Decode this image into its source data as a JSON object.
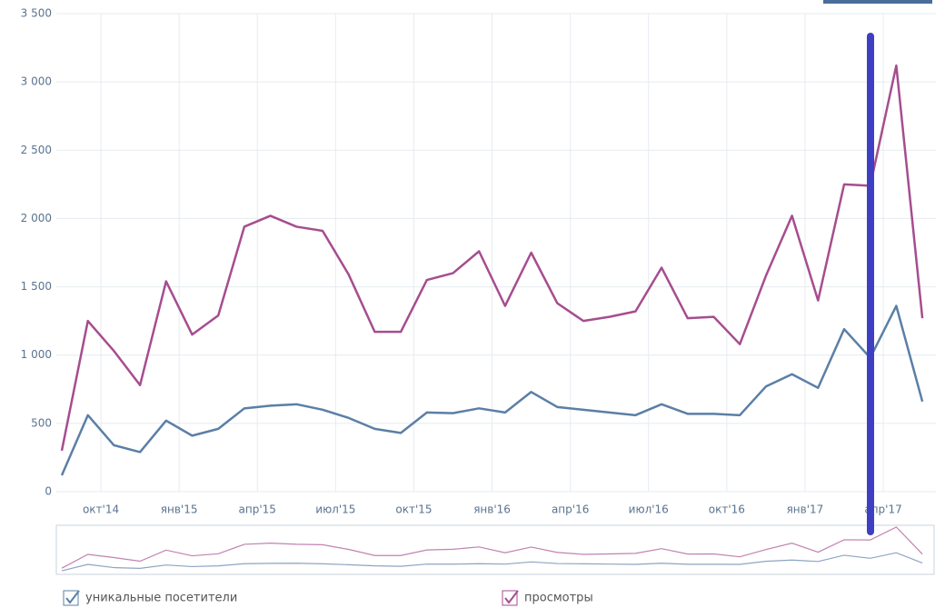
{
  "chart_data": {
    "type": "line",
    "categories": [
      null,
      "окт'14",
      null,
      null,
      "янв'15",
      null,
      null,
      "апр'15",
      null,
      null,
      "июл'15",
      null,
      null,
      "окт'15",
      null,
      null,
      "янв'16",
      null,
      null,
      "апр'16",
      null,
      null,
      "июл'16",
      null,
      null,
      "окт'16",
      null,
      null,
      "янв'17",
      null,
      null,
      "апр'17",
      null,
      null
    ],
    "series": [
      {
        "name": "уникальные посетители",
        "color": "#5b7fa6",
        "values": [
          120,
          560,
          340,
          290,
          520,
          410,
          460,
          610,
          630,
          640,
          600,
          540,
          460,
          430,
          580,
          575,
          610,
          580,
          730,
          620,
          600,
          580,
          560,
          640,
          570,
          570,
          560,
          770,
          860,
          760,
          1190,
          980,
          1360,
          660
        ]
      },
      {
        "name": "просмотры",
        "color": "#a64d8f",
        "values": [
          300,
          1250,
          1030,
          780,
          1540,
          1150,
          1290,
          1940,
          2020,
          1940,
          1910,
          1590,
          1170,
          1170,
          1550,
          1600,
          1760,
          1360,
          1750,
          1380,
          1250,
          1280,
          1320,
          1640,
          1270,
          1280,
          1080,
          1580,
          2020,
          1400,
          2250,
          2240,
          3120,
          1270
        ]
      }
    ],
    "ylim": [
      0,
      3500
    ],
    "yticks": [
      0,
      500,
      {
        "value": 1000,
        "label": "1 000"
      },
      {
        "value": 1500,
        "label": "1 500"
      },
      {
        "value": 2000,
        "label": "2 000"
      },
      {
        "value": 2500,
        "label": "2 500"
      },
      {
        "value": 3000,
        "label": "3 000"
      },
      {
        "value": 3500,
        "label": "3 500"
      }
    ],
    "grid": true
  }
}
